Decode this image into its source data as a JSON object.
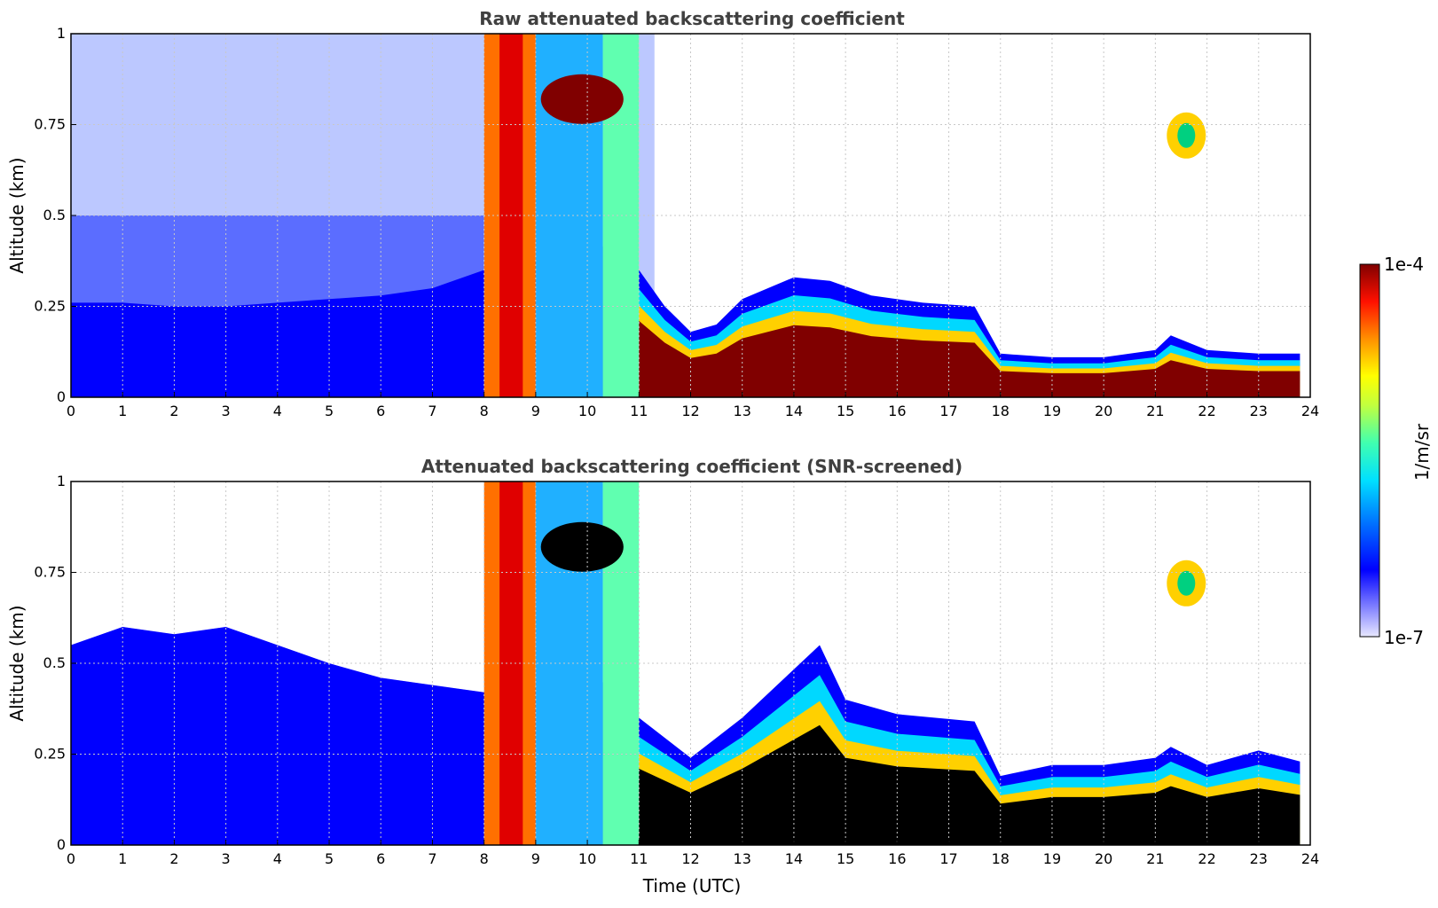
{
  "chart_data": [
    {
      "type": "heatmap",
      "title": "Raw attenuated backscattering coefficient",
      "xlabel": "",
      "ylabel": "Altitude (km)",
      "xlim": [
        0,
        24
      ],
      "ylim": [
        0,
        1
      ],
      "x_ticks": [
        "0",
        "1",
        "2",
        "3",
        "4",
        "5",
        "6",
        "7",
        "8",
        "9",
        "10",
        "11",
        "12",
        "13",
        "14",
        "15",
        "16",
        "17",
        "18",
        "19",
        "20",
        "21",
        "22",
        "23",
        "24"
      ],
      "y_ticks": [
        "0",
        "0.25",
        "0.5",
        "0.75",
        "1"
      ],
      "grid": true,
      "colorscale": "jet",
      "layer_height_km": [
        {
          "time": 0,
          "value": 0.26
        },
        {
          "time": 1,
          "value": 0.26
        },
        {
          "time": 2,
          "value": 0.25
        },
        {
          "time": 3,
          "value": 0.25
        },
        {
          "time": 4,
          "value": 0.26
        },
        {
          "time": 5,
          "value": 0.27
        },
        {
          "time": 6,
          "value": 0.28
        },
        {
          "time": 7,
          "value": 0.3
        },
        {
          "time": 8,
          "value": 0.35
        },
        {
          "time": 10.5,
          "value": 0.42
        },
        {
          "time": 11,
          "value": 0.35
        },
        {
          "time": 11.5,
          "value": 0.25
        },
        {
          "time": 12,
          "value": 0.18
        },
        {
          "time": 12.5,
          "value": 0.2
        },
        {
          "time": 13,
          "value": 0.27
        },
        {
          "time": 14,
          "value": 0.33
        },
        {
          "time": 14.7,
          "value": 0.32
        },
        {
          "time": 15.5,
          "value": 0.28
        },
        {
          "time": 16.5,
          "value": 0.26
        },
        {
          "time": 17.5,
          "value": 0.25
        },
        {
          "time": 18,
          "value": 0.12
        },
        {
          "time": 19,
          "value": 0.11
        },
        {
          "time": 20,
          "value": 0.11
        },
        {
          "time": 21,
          "value": 0.13
        },
        {
          "time": 21.3,
          "value": 0.17
        },
        {
          "time": 22,
          "value": 0.13
        },
        {
          "time": 23,
          "value": 0.12
        },
        {
          "time": 23.8,
          "value": 0.12
        }
      ],
      "cloud_features": [
        {
          "time_start": 8.0,
          "time_end": 9.0,
          "alt_top": 1.0,
          "note_level": "high"
        },
        {
          "time_start": 9.0,
          "time_end": 10.7,
          "alt_top": 1.0,
          "note_level": "high"
        },
        {
          "time_start": 21.1,
          "time_end": 22.2,
          "alt_top": 0.83,
          "note_level": "mid"
        }
      ]
    },
    {
      "type": "heatmap",
      "title": "Attenuated backscattering coefficient (SNR-screened)",
      "xlabel": "Time (UTC)",
      "ylabel": "Altitude (km)",
      "xlim": [
        0,
        24
      ],
      "ylim": [
        0,
        1
      ],
      "x_ticks": [
        "0",
        "1",
        "2",
        "3",
        "4",
        "5",
        "6",
        "7",
        "8",
        "9",
        "10",
        "11",
        "12",
        "13",
        "14",
        "15",
        "16",
        "17",
        "18",
        "19",
        "20",
        "21",
        "22",
        "23",
        "24"
      ],
      "y_ticks": [
        "0",
        "0.25",
        "0.5",
        "0.75",
        "1"
      ],
      "grid": true,
      "colorscale": "jet",
      "layer_height_km": [
        {
          "time": 0,
          "value": 0.55
        },
        {
          "time": 1,
          "value": 0.6
        },
        {
          "time": 2,
          "value": 0.58
        },
        {
          "time": 3,
          "value": 0.6
        },
        {
          "time": 4,
          "value": 0.55
        },
        {
          "time": 5,
          "value": 0.5
        },
        {
          "time": 6,
          "value": 0.46
        },
        {
          "time": 7,
          "value": 0.44
        },
        {
          "time": 8,
          "value": 0.42
        },
        {
          "time": 10.5,
          "value": 0.45
        },
        {
          "time": 11,
          "value": 0.35
        },
        {
          "time": 12,
          "value": 0.24
        },
        {
          "time": 13,
          "value": 0.35
        },
        {
          "time": 14.5,
          "value": 0.55
        },
        {
          "time": 15,
          "value": 0.4
        },
        {
          "time": 16,
          "value": 0.36
        },
        {
          "time": 17.5,
          "value": 0.34
        },
        {
          "time": 18,
          "value": 0.19
        },
        {
          "time": 19,
          "value": 0.22
        },
        {
          "time": 20,
          "value": 0.22
        },
        {
          "time": 21,
          "value": 0.24
        },
        {
          "time": 21.3,
          "value": 0.27
        },
        {
          "time": 22,
          "value": 0.22
        },
        {
          "time": 23,
          "value": 0.26
        },
        {
          "time": 23.8,
          "value": 0.23
        }
      ]
    }
  ],
  "colorbar": {
    "label": "1/m/sr",
    "max_label": "1e-4",
    "min_label": "1e-7",
    "scale": "log",
    "range": [
      1e-07,
      0.0001
    ]
  },
  "colors": {
    "grid": "#c8c8c8",
    "title": "#404040",
    "dark_red": "#800000",
    "blue": "#0000ff",
    "saturated": "#000000"
  }
}
